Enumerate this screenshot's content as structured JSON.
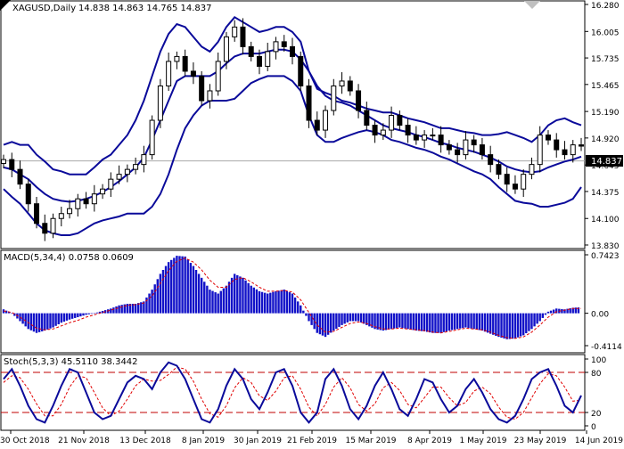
{
  "chart_data": [
    {
      "type": "candlestick",
      "symbol_label": "XAGUSD,Daily",
      "ohlc_label": "14.838 14.863 14.765 14.837",
      "last_price": 14.837,
      "last_price_label": "14.837",
      "ylim": [
        13.83,
        16.28
      ],
      "y_ticks": [
        {
          "value": 16.28,
          "label": "16.280"
        },
        {
          "value": 16.005,
          "label": "16.005"
        },
        {
          "value": 15.735,
          "label": "15.735"
        },
        {
          "value": 15.465,
          "label": "15.465"
        },
        {
          "value": 15.19,
          "label": "15.190"
        },
        {
          "value": 14.92,
          "label": "14.920"
        },
        {
          "value": 14.645,
          "label": "14.645"
        },
        {
          "value": 14.375,
          "label": "14.375"
        },
        {
          "value": 14.1,
          "label": "14.100"
        },
        {
          "value": 13.83,
          "label": "13.830"
        }
      ],
      "x_ticks": [
        "30 Oct 2018",
        "21 Nov 2018",
        "13 Dec 2018",
        "8 Jan 2019",
        "30 Jan 2019",
        "21 Feb 2019",
        "15 Mar 2019",
        "8 Apr 2019",
        "1 May 2019",
        "23 May 2019",
        "14 Jun 2019"
      ],
      "series": [
        {
          "name": "price",
          "values": [
            14.7,
            14.6,
            14.45,
            14.25,
            14.05,
            13.95,
            14.1,
            14.15,
            14.2,
            14.3,
            14.25,
            14.35,
            14.4,
            14.5,
            14.55,
            14.6,
            14.65,
            14.75,
            15.1,
            15.45,
            15.7,
            15.75,
            15.6,
            15.55,
            15.3,
            15.4,
            15.7,
            15.95,
            16.05,
            15.85,
            15.75,
            15.65,
            15.8,
            15.9,
            15.85,
            15.75,
            15.45,
            15.1,
            15.0,
            15.2,
            15.45,
            15.5,
            15.4,
            15.2,
            15.05,
            14.95,
            15.0,
            15.15,
            15.05,
            14.95,
            14.9,
            14.95,
            14.95,
            14.85,
            14.8,
            14.75,
            14.9,
            14.85,
            14.75,
            14.65,
            14.55,
            14.45,
            14.4,
            14.55,
            14.65,
            14.95,
            14.9,
            14.8,
            14.75,
            14.85,
            14.837
          ]
        },
        {
          "name": "bb_upper",
          "values": [
            14.85,
            14.88,
            14.85,
            14.85,
            14.75,
            14.68,
            14.6,
            14.58,
            14.55,
            14.55,
            14.55,
            14.62,
            14.7,
            14.75,
            14.85,
            14.95,
            15.1,
            15.3,
            15.55,
            15.8,
            15.98,
            16.08,
            16.05,
            15.95,
            15.85,
            15.8,
            15.9,
            16.05,
            16.15,
            16.1,
            16.05,
            16.0,
            16.02,
            16.05,
            16.05,
            16.0,
            15.9,
            15.6,
            15.42,
            15.38,
            15.35,
            15.3,
            15.28,
            15.25,
            15.22,
            15.2,
            15.18,
            15.18,
            15.15,
            15.12,
            15.1,
            15.08,
            15.05,
            15.02,
            15.02,
            15.0,
            14.98,
            14.97,
            14.95,
            14.95,
            14.96,
            14.98,
            14.95,
            14.92,
            14.88,
            14.95,
            15.05,
            15.1,
            15.12,
            15.08,
            15.05
          ]
        },
        {
          "name": "bb_middle",
          "values": [
            14.62,
            14.6,
            14.55,
            14.5,
            14.42,
            14.35,
            14.3,
            14.28,
            14.27,
            14.28,
            14.3,
            14.33,
            14.37,
            14.42,
            14.48,
            14.55,
            14.62,
            14.72,
            14.9,
            15.1,
            15.3,
            15.5,
            15.55,
            15.55,
            15.55,
            15.55,
            15.6,
            15.68,
            15.75,
            15.78,
            15.78,
            15.78,
            15.8,
            15.82,
            15.82,
            15.8,
            15.72,
            15.6,
            15.45,
            15.35,
            15.3,
            15.28,
            15.25,
            15.2,
            15.15,
            15.1,
            15.05,
            15.02,
            15.0,
            14.98,
            14.95,
            14.93,
            14.9,
            14.87,
            14.85,
            14.82,
            14.8,
            14.78,
            14.75,
            14.72,
            14.68,
            14.63,
            14.6,
            14.58,
            14.57,
            14.58,
            14.62,
            14.65,
            14.68,
            14.7,
            14.73
          ]
        },
        {
          "name": "bb_lower",
          "values": [
            14.4,
            14.32,
            14.25,
            14.15,
            14.05,
            13.98,
            13.95,
            13.93,
            13.93,
            13.95,
            14.0,
            14.05,
            14.08,
            14.1,
            14.12,
            14.15,
            14.15,
            14.15,
            14.22,
            14.35,
            14.55,
            14.8,
            15.02,
            15.15,
            15.25,
            15.3,
            15.3,
            15.3,
            15.32,
            15.4,
            15.48,
            15.52,
            15.55,
            15.55,
            15.55,
            15.5,
            15.4,
            15.15,
            14.95,
            14.88,
            14.88,
            14.92,
            14.95,
            14.98,
            15.0,
            14.98,
            14.95,
            14.9,
            14.88,
            14.85,
            14.82,
            14.8,
            14.77,
            14.73,
            14.7,
            14.66,
            14.62,
            14.58,
            14.55,
            14.5,
            14.42,
            14.35,
            14.28,
            14.26,
            14.25,
            14.22,
            14.22,
            14.24,
            14.26,
            14.3,
            14.42
          ]
        }
      ]
    },
    {
      "type": "bar",
      "label": "MACD(5,34,4) 0.0758 0.0609",
      "ylim": [
        -0.4114,
        0.7423
      ],
      "y_ticks": [
        {
          "value": 0.7423,
          "label": "0.7423"
        },
        {
          "value": 0.0,
          "label": "0.00"
        },
        {
          "value": -0.4114,
          "label": "-0.4114"
        }
      ],
      "series": [
        {
          "name": "histogram",
          "values": [
            0.05,
            0.0,
            -0.1,
            -0.2,
            -0.25,
            -0.22,
            -0.18,
            -0.12,
            -0.08,
            -0.05,
            -0.02,
            0.0,
            0.03,
            0.06,
            0.1,
            0.12,
            0.12,
            0.15,
            0.3,
            0.5,
            0.65,
            0.73,
            0.72,
            0.6,
            0.45,
            0.3,
            0.25,
            0.35,
            0.5,
            0.45,
            0.35,
            0.28,
            0.25,
            0.28,
            0.3,
            0.25,
            0.1,
            -0.1,
            -0.25,
            -0.3,
            -0.22,
            -0.15,
            -0.1,
            -0.1,
            -0.15,
            -0.2,
            -0.22,
            -0.2,
            -0.18,
            -0.2,
            -0.22,
            -0.23,
            -0.25,
            -0.25,
            -0.22,
            -0.2,
            -0.18,
            -0.2,
            -0.22,
            -0.26,
            -0.3,
            -0.33,
            -0.32,
            -0.28,
            -0.2,
            -0.1,
            0.02,
            0.06,
            0.05,
            0.07,
            0.0758
          ]
        },
        {
          "name": "signal",
          "values": [
            0.03,
            0.01,
            -0.05,
            -0.12,
            -0.19,
            -0.21,
            -0.2,
            -0.16,
            -0.12,
            -0.09,
            -0.05,
            -0.02,
            0.01,
            0.04,
            0.07,
            0.1,
            0.11,
            0.13,
            0.22,
            0.38,
            0.54,
            0.66,
            0.7,
            0.65,
            0.55,
            0.42,
            0.33,
            0.33,
            0.43,
            0.45,
            0.4,
            0.33,
            0.28,
            0.28,
            0.29,
            0.27,
            0.17,
            0.01,
            -0.15,
            -0.24,
            -0.23,
            -0.18,
            -0.13,
            -0.11,
            -0.13,
            -0.17,
            -0.2,
            -0.2,
            -0.19,
            -0.2,
            -0.21,
            -0.22,
            -0.24,
            -0.25,
            -0.23,
            -0.21,
            -0.19,
            -0.2,
            -0.21,
            -0.24,
            -0.28,
            -0.31,
            -0.32,
            -0.3,
            -0.24,
            -0.15,
            -0.05,
            0.02,
            0.04,
            0.06,
            0.0609
          ]
        }
      ]
    },
    {
      "type": "line",
      "label": "Stoch(5,3,3) 45.5110 38.3442",
      "ylim": [
        0,
        100
      ],
      "y_ticks": [
        {
          "value": 100,
          "label": "100"
        },
        {
          "value": 80,
          "label": "80"
        },
        {
          "value": 20,
          "label": "20"
        },
        {
          "value": 0,
          "label": "0"
        }
      ],
      "levels": [
        80,
        20
      ],
      "series": [
        {
          "name": "main",
          "values": [
            70,
            85,
            60,
            30,
            10,
            5,
            30,
            60,
            85,
            80,
            50,
            20,
            10,
            15,
            40,
            65,
            75,
            70,
            55,
            80,
            95,
            90,
            70,
            40,
            10,
            5,
            25,
            60,
            85,
            70,
            40,
            25,
            50,
            80,
            85,
            60,
            20,
            5,
            20,
            70,
            85,
            60,
            25,
            10,
            30,
            60,
            80,
            55,
            25,
            15,
            40,
            70,
            65,
            40,
            20,
            30,
            55,
            70,
            50,
            25,
            10,
            5,
            15,
            40,
            70,
            80,
            85,
            60,
            30,
            20,
            45.511
          ]
        },
        {
          "name": "signal",
          "values": [
            65,
            75,
            72,
            55,
            33,
            15,
            15,
            32,
            58,
            75,
            72,
            50,
            27,
            15,
            22,
            40,
            60,
            70,
            67,
            68,
            77,
            88,
            85,
            67,
            40,
            18,
            13,
            30,
            57,
            72,
            65,
            45,
            38,
            52,
            72,
            75,
            55,
            28,
            15,
            32,
            58,
            72,
            57,
            32,
            22,
            33,
            57,
            65,
            53,
            32,
            27,
            42,
            58,
            58,
            42,
            30,
            35,
            52,
            58,
            48,
            28,
            13,
            10,
            20,
            42,
            63,
            78,
            75,
            58,
            37,
            38.3442
          ]
        }
      ]
    }
  ]
}
